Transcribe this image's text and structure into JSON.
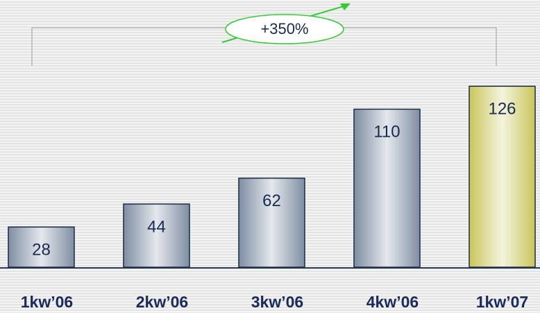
{
  "chart_data": {
    "type": "bar",
    "categories": [
      "1kw’06",
      "2kw’06",
      "3kw’06",
      "4kw’06",
      "1kw’07"
    ],
    "values": [
      28,
      44,
      62,
      110,
      126
    ],
    "colors": [
      "#7f8ea3",
      "#7f8ea3",
      "#7f8ea3",
      "#7f8ea3",
      "#c9c65a"
    ],
    "ylim": [
      0,
      130
    ],
    "annotation": "+350%"
  }
}
